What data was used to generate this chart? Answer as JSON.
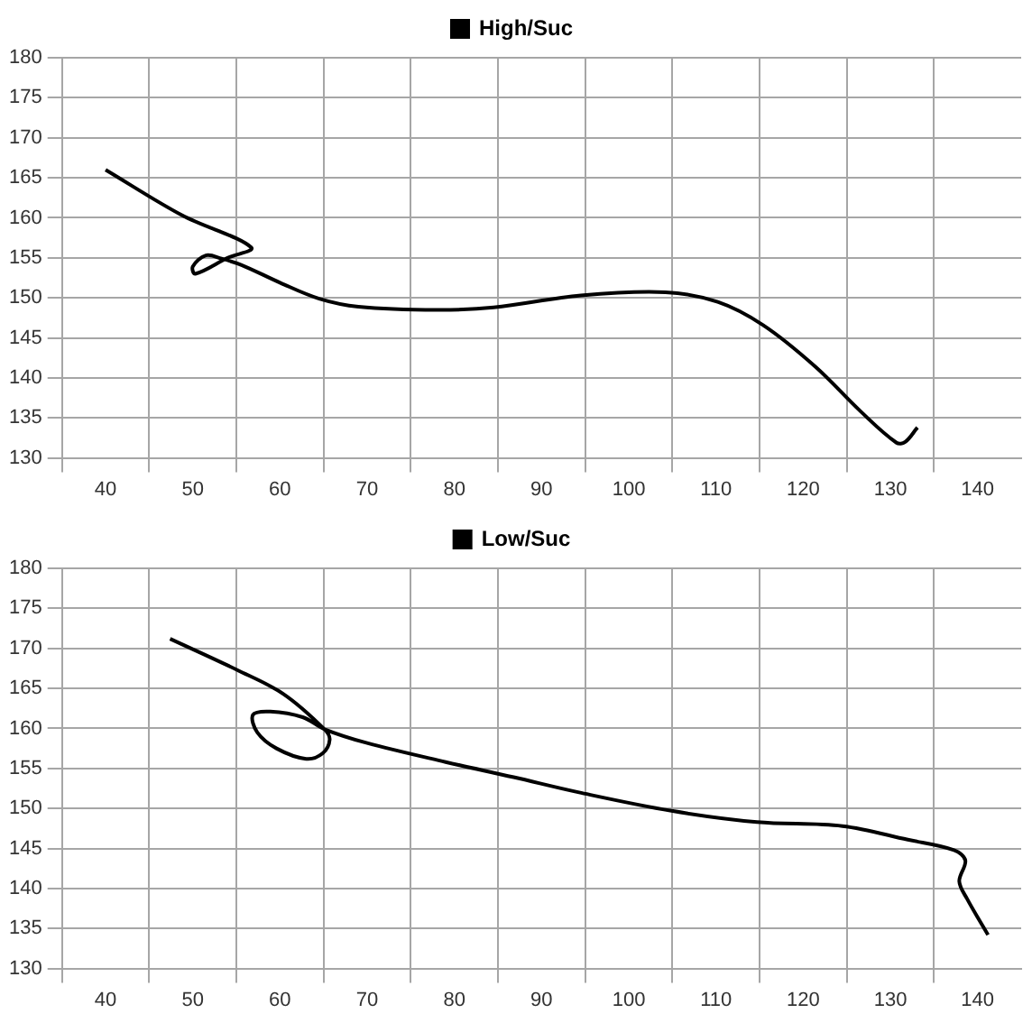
{
  "chart_data": [
    {
      "type": "line",
      "legend": "top",
      "grid": true,
      "marker": "none",
      "line_style": "solid",
      "xlim": [
        35,
        145
      ],
      "ylim": [
        130,
        180
      ],
      "yticks": [
        130,
        135,
        140,
        145,
        150,
        155,
        160,
        165,
        170,
        175,
        180
      ],
      "xticks": [
        {
          "value": 35,
          "label": null
        },
        40,
        {
          "value": 45,
          "label": null
        },
        50,
        {
          "value": 55,
          "label": null
        },
        60,
        {
          "value": 65,
          "label": null
        },
        70,
        {
          "value": 75,
          "label": null
        },
        80,
        {
          "value": 85,
          "label": null
        },
        90,
        {
          "value": 95,
          "label": null
        },
        100,
        {
          "value": 105,
          "label": null
        },
        110,
        {
          "value": 115,
          "label": null
        },
        120,
        {
          "value": 125,
          "label": null
        },
        130,
        {
          "value": 135,
          "label": null
        },
        140
      ],
      "series": [
        {
          "name": "High/Suc",
          "color": "#000000",
          "x": [
            40,
            48.8,
            56.7,
            54,
            50.3,
            50,
            51.5,
            53.3,
            55.6,
            60,
            64.5,
            69,
            78,
            84.5,
            94.5,
            104.2,
            110.2,
            115.4,
            121.4,
            126.6,
            130.7,
            131.7,
            133.1
          ],
          "values": [
            166,
            160.3,
            156.3,
            155,
            153,
            153.9,
            155.3,
            154.9,
            154.1,
            151.9,
            149.9,
            148.9,
            148.5,
            148.8,
            150.3,
            150.7,
            149.5,
            146.6,
            141.4,
            135.8,
            131.9,
            132,
            133.8
          ]
        }
      ]
    },
    {
      "type": "line",
      "legend": "top",
      "grid": true,
      "marker": "none",
      "line_style": "solid",
      "xlim": [
        35,
        145
      ],
      "ylim": [
        130,
        180
      ],
      "yticks": [
        130,
        135,
        140,
        145,
        150,
        155,
        160,
        165,
        170,
        175,
        180
      ],
      "xticks": [
        {
          "value": 35,
          "label": null
        },
        40,
        {
          "value": 45,
          "label": null
        },
        50,
        {
          "value": 55,
          "label": null
        },
        60,
        {
          "value": 65,
          "label": null
        },
        70,
        {
          "value": 75,
          "label": null
        },
        80,
        {
          "value": 85,
          "label": null
        },
        90,
        {
          "value": 95,
          "label": null
        },
        100,
        {
          "value": 105,
          "label": null
        },
        110,
        {
          "value": 115,
          "label": null
        },
        120,
        {
          "value": 125,
          "label": null
        },
        130,
        {
          "value": 135,
          "label": null
        },
        140
      ],
      "series": [
        {
          "name": "Low/Suc",
          "color": "#000000",
          "x": [
            47.4,
            55.1,
            60.4,
            65.1,
            65.7,
            64.9,
            63,
            59.6,
            57.4,
            56.9,
            58.9,
            62.6,
            65.1,
            69.9,
            79,
            86.8,
            94.3,
            104.9,
            114.7,
            124.5,
            132,
            137.3,
            138.6,
            137.9,
            138.8,
            141.2
          ],
          "values": [
            171.2,
            167.3,
            164.3,
            159.9,
            158.6,
            156.9,
            156.2,
            157.5,
            159.5,
            161.7,
            162.1,
            161.4,
            159.9,
            158.2,
            155.8,
            153.9,
            152,
            149.7,
            148.3,
            147.8,
            146.1,
            144.8,
            143.5,
            140.9,
            138.7,
            134.2
          ]
        }
      ]
    }
  ]
}
